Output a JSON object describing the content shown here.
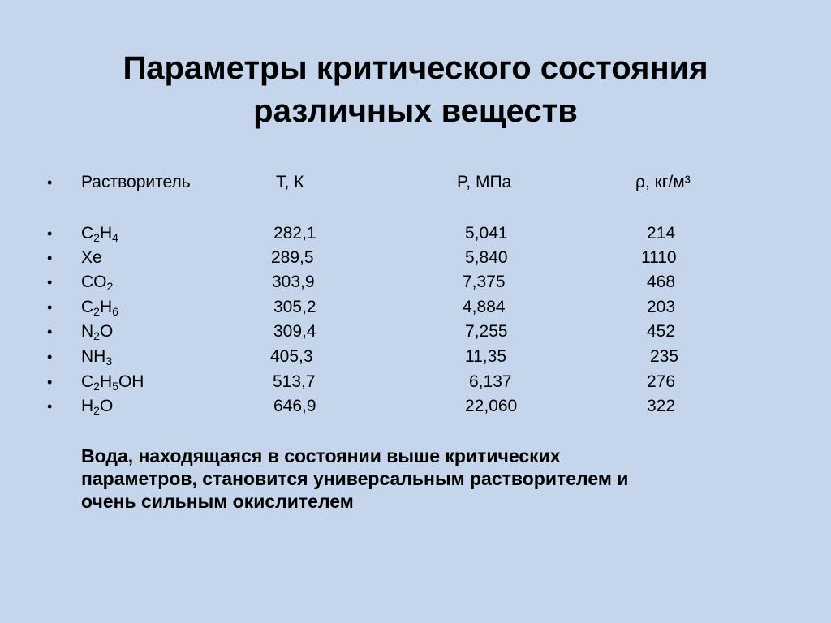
{
  "slide": {
    "title_line1": "Параметры критического состояния",
    "title_line2": "различных веществ",
    "bullet": "•"
  },
  "table": {
    "headers": {
      "solvent": "Растворитель",
      "temperature": "T, К",
      "pressure": "P, МПа",
      "density": "ρ, кг/м³"
    },
    "rows": [
      {
        "f1": "C",
        "s1": "2",
        "f2": "H",
        "s2": "4",
        "f3": "",
        "s3": "",
        "f4": "",
        "t": "282,1",
        "p": "5,041",
        "d": "214"
      },
      {
        "f1": "Xe",
        "s1": "",
        "f2": "",
        "s2": "",
        "f3": "",
        "s3": "",
        "f4": "",
        "t": "289,5",
        "p": "5,840",
        "d": "1110"
      },
      {
        "f1": "CO",
        "s1": "2",
        "f2": "",
        "s2": "",
        "f3": "",
        "s3": "",
        "f4": "",
        "t": "303,9",
        "p": "7,375",
        "d": "468"
      },
      {
        "f1": "C",
        "s1": "2",
        "f2": "H",
        "s2": "6",
        "f3": "",
        "s3": "",
        "f4": "",
        "t": "305,2",
        "p": "4,884",
        "d": "203"
      },
      {
        "f1": "N",
        "s1": "2",
        "f2": "O",
        "s2": "",
        "f3": "",
        "s3": "",
        "f4": "",
        "t": "309,4",
        "p": "7,255",
        "d": "452"
      },
      {
        "f1": "NH",
        "s1": "3",
        "f2": "",
        "s2": "",
        "f3": "",
        "s3": "",
        "f4": "",
        "t": "405,3",
        "p": "11,35",
        "d": "235"
      },
      {
        "f1": "C",
        "s1": "2",
        "f2": "H",
        "s2": "5",
        "f3": "OH",
        "s3": "",
        "f4": "",
        "t": "513,7",
        "p": "6,137",
        "d": "276"
      },
      {
        "f1": "H",
        "s1": "2",
        "f2": "O",
        "s2": "",
        "f3": "",
        "s3": "",
        "f4": "",
        "t": "646,9",
        "p": "22,060",
        "d": "322"
      }
    ]
  },
  "note": {
    "line1": "Вода, находящаяся в состоянии выше критических",
    "line2": "параметров, становится универсальным растворителем и",
    "line3": "очень сильным окислителем"
  }
}
